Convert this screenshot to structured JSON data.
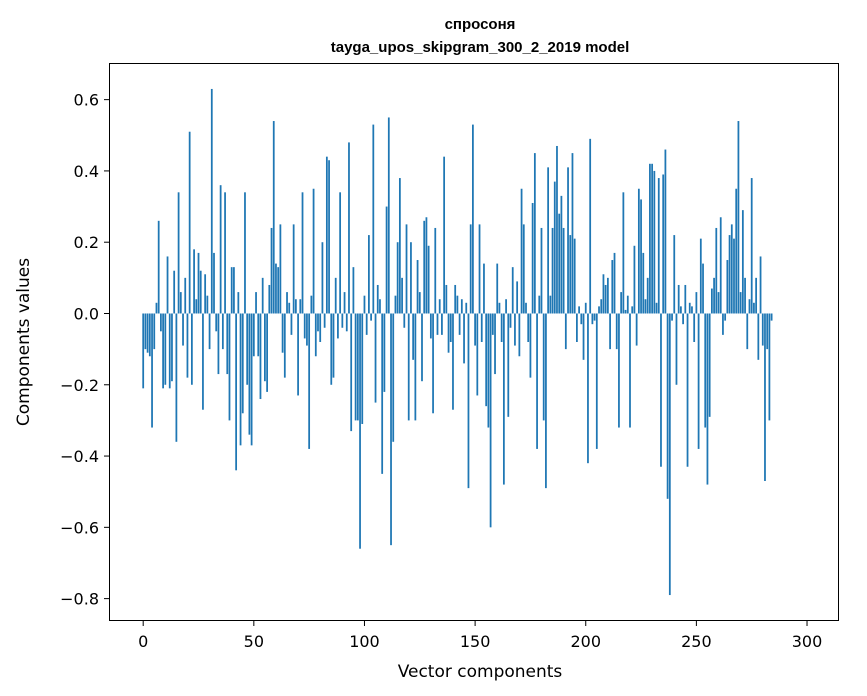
{
  "chart_data": {
    "type": "bar",
    "title": "спросоня",
    "subtitle": "tayga_upos_skipgram_300_2_2019 model",
    "xlabel": "Vector components",
    "ylabel": "Components values",
    "xlim": [
      -15,
      314
    ],
    "ylim": [
      -0.86,
      0.7
    ],
    "xticks": [
      0,
      50,
      100,
      150,
      200,
      250,
      300
    ],
    "yticks": [
      -0.8,
      -0.6,
      -0.4,
      -0.2,
      0.0,
      0.2,
      0.4,
      0.6
    ],
    "ytick_labels": [
      "−0.8",
      "−0.6",
      "−0.4",
      "−0.2",
      "0.0",
      "0.2",
      "0.4",
      "0.6"
    ],
    "bar_color": "#1f77b4",
    "grid": false,
    "values": [
      -0.21,
      -0.1,
      -0.11,
      -0.12,
      -0.32,
      -0.1,
      0.03,
      0.26,
      -0.05,
      -0.21,
      -0.2,
      0.16,
      -0.21,
      -0.19,
      0.12,
      -0.36,
      0.34,
      0.06,
      -0.09,
      0.1,
      -0.18,
      0.51,
      -0.2,
      0.18,
      0.04,
      0.17,
      0.12,
      -0.27,
      0.11,
      0.05,
      -0.1,
      0.63,
      0.17,
      -0.05,
      -0.17,
      0.36,
      -0.1,
      0.34,
      -0.17,
      -0.3,
      0.13,
      0.13,
      -0.44,
      0.06,
      -0.37,
      -0.28,
      0.34,
      -0.2,
      -0.34,
      -0.37,
      -0.12,
      0.06,
      -0.12,
      -0.24,
      0.1,
      -0.19,
      -0.22,
      0.08,
      0.24,
      0.54,
      0.14,
      0.13,
      0.25,
      -0.11,
      -0.18,
      0.06,
      0.03,
      -0.06,
      0.25,
      0.04,
      -0.23,
      0.04,
      0.34,
      -0.07,
      -0.09,
      -0.38,
      0.05,
      0.35,
      -0.12,
      -0.05,
      -0.08,
      0.2,
      -0.04,
      0.44,
      0.43,
      -0.2,
      -0.18,
      0.1,
      -0.07,
      0.34,
      -0.04,
      0.06,
      -0.05,
      0.48,
      -0.33,
      0.13,
      -0.3,
      -0.3,
      -0.66,
      -0.31,
      0.05,
      -0.06,
      0.22,
      -0.02,
      0.53,
      -0.25,
      0.08,
      0.04,
      -0.45,
      -0.22,
      0.3,
      0.55,
      -0.65,
      -0.36,
      0.05,
      0.2,
      0.38,
      0.1,
      -0.04,
      0.25,
      -0.3,
      0.2,
      -0.13,
      -0.3,
      0.15,
      0.06,
      -0.19,
      0.26,
      0.27,
      0.19,
      -0.07,
      -0.28,
      0.24,
      -0.06,
      0.04,
      -0.06,
      0.44,
      0.08,
      -0.11,
      -0.08,
      -0.27,
      0.08,
      0.05,
      -0.06,
      0.04,
      -0.14,
      0.03,
      -0.49,
      0.25,
      0.53,
      -0.09,
      -0.23,
      0.25,
      -0.08,
      0.14,
      -0.26,
      -0.32,
      -0.6,
      -0.06,
      -0.17,
      0.14,
      0.03,
      -0.08,
      -0.48,
      0.04,
      -0.29,
      -0.04,
      0.13,
      -0.09,
      0.09,
      -0.12,
      0.35,
      0.25,
      0.03,
      -0.08,
      -0.18,
      0.31,
      0.45,
      -0.38,
      0.05,
      0.24,
      -0.3,
      -0.49,
      0.41,
      0.05,
      0.24,
      0.37,
      0.47,
      0.28,
      0.33,
      0.24,
      -0.1,
      0.41,
      0.22,
      0.45,
      0.21,
      -0.08,
      0.02,
      -0.03,
      -0.13,
      0.03,
      -0.42,
      0.49,
      -0.03,
      -0.02,
      -0.38,
      0.02,
      0.04,
      0.11,
      0.08,
      0.1,
      -0.1,
      0.15,
      0.17,
      -0.1,
      -0.32,
      0.06,
      0.34,
      0.01,
      0.05,
      -0.32,
      0.02,
      0.19,
      -0.09,
      0.35,
      0.32,
      0.17,
      0.04,
      0.1,
      0.42,
      0.42,
      0.4,
      0.03,
      0.38,
      -0.43,
      0.39,
      0.46,
      -0.52,
      -0.79,
      -0.02,
      0.22,
      -0.2,
      0.08,
      0.02,
      -0.03,
      0.08,
      -0.43,
      0.03,
      0.02,
      -0.08,
      0.06,
      -0.38,
      0.21,
      0.14,
      -0.32,
      -0.48,
      -0.29,
      0.07,
      0.1,
      0.24,
      0.06,
      0.27,
      -0.06,
      -0.02,
      0.15,
      0.22,
      0.25,
      0.21,
      0.35,
      0.54,
      0.06,
      0.29,
      0.1,
      -0.1,
      0.04,
      0.38,
      0.03,
      0.1,
      -0.13,
      0.16,
      -0.09,
      -0.47,
      -0.1,
      -0.3,
      -0.02
    ]
  }
}
